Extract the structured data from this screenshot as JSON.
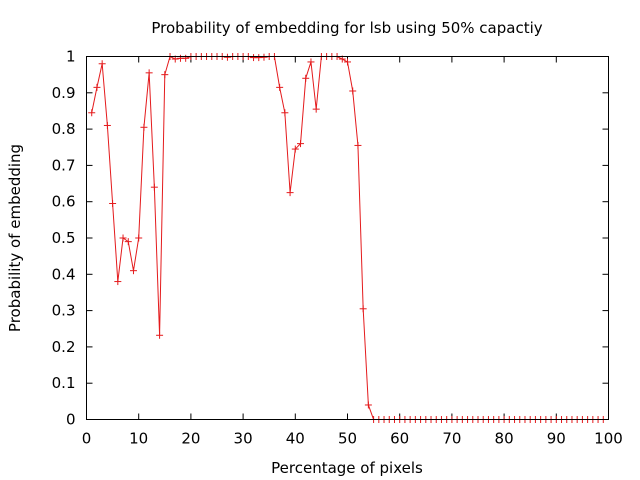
{
  "chart_data": {
    "type": "line",
    "title": "Probability of embedding for lsb using 50% capactiy",
    "xlabel": "Percentage of pixels",
    "ylabel": "Probability of embedding",
    "xlim": [
      0,
      100
    ],
    "ylim": [
      0,
      1
    ],
    "xticks": [
      0,
      10,
      20,
      30,
      40,
      50,
      60,
      70,
      80,
      90,
      100
    ],
    "yticks": [
      0,
      0.1,
      0.2,
      0.3,
      0.4,
      0.5,
      0.6,
      0.7,
      0.8,
      0.9,
      1
    ],
    "ytick_labels": [
      "0",
      "0.1",
      "0.2",
      "0.3",
      "0.4",
      "0.5",
      "0.6",
      "0.7",
      "0.8",
      "0.9",
      "1"
    ],
    "grid": false,
    "legend": "none",
    "series": [
      {
        "color": "#e41a1c",
        "marker": "plus",
        "x": [
          1,
          2,
          3,
          4,
          5,
          6,
          7,
          8,
          9,
          10,
          11,
          12,
          13,
          14,
          15,
          16,
          17,
          18,
          19,
          20,
          21,
          22,
          23,
          24,
          25,
          26,
          27,
          28,
          29,
          30,
          31,
          32,
          33,
          34,
          35,
          36,
          37,
          38,
          39,
          40,
          41,
          42,
          43,
          44,
          45,
          46,
          47,
          48,
          49,
          50,
          51,
          52,
          53,
          54,
          55,
          56,
          57,
          58,
          59,
          60,
          61,
          62,
          63,
          64,
          65,
          66,
          67,
          68,
          69,
          70,
          71,
          72,
          73,
          74,
          75,
          76,
          77,
          78,
          79,
          80,
          81,
          82,
          83,
          84,
          85,
          86,
          87,
          88,
          89,
          90,
          91,
          92,
          93,
          94,
          95,
          96,
          97,
          98,
          99
        ],
        "y": [
          0.845,
          0.915,
          0.98,
          0.81,
          0.595,
          0.38,
          0.5,
          0.49,
          0.41,
          0.5,
          0.805,
          0.955,
          0.64,
          0.232,
          0.95,
          1.0,
          0.993,
          0.995,
          0.995,
          1.0,
          1.0,
          1.0,
          1.0,
          1.0,
          1.0,
          1.0,
          0.998,
          1.0,
          1.0,
          1.0,
          1.0,
          0.997,
          0.997,
          0.998,
          1.0,
          1.0,
          0.915,
          0.845,
          0.625,
          0.745,
          0.76,
          0.94,
          0.985,
          0.855,
          1.0,
          1.0,
          1.0,
          1.0,
          0.993,
          0.985,
          0.905,
          0.755,
          0.305,
          0.04,
          0,
          0,
          0,
          0,
          0,
          0,
          0,
          0,
          0,
          0,
          0,
          0,
          0,
          0,
          0,
          0,
          0,
          0,
          0,
          0,
          0,
          0,
          0,
          0,
          0,
          0,
          0,
          0,
          0,
          0,
          0,
          0,
          0,
          0,
          0,
          0,
          0,
          0,
          0,
          0,
          0,
          0,
          0,
          0,
          0
        ]
      }
    ]
  }
}
